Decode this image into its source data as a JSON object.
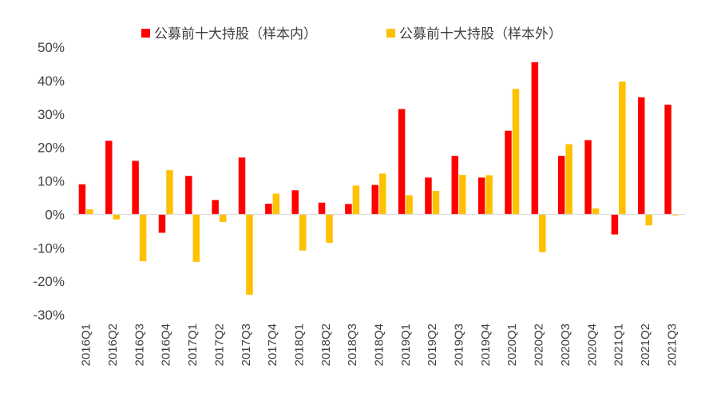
{
  "chart_data": {
    "type": "bar",
    "categories": [
      "2016Q1",
      "2016Q2",
      "2016Q3",
      "2016Q4",
      "2017Q1",
      "2017Q2",
      "2017Q3",
      "2017Q4",
      "2018Q1",
      "2018Q2",
      "2018Q3",
      "2018Q4",
      "2019Q1",
      "2019Q2",
      "2019Q3",
      "2019Q4",
      "2020Q1",
      "2020Q2",
      "2020Q3",
      "2020Q4",
      "2021Q1",
      "2021Q2",
      "2021Q3"
    ],
    "series": [
      {
        "name": "公募前十大持股（样本内）",
        "color": "#ff0000",
        "values": [
          9,
          22,
          16,
          -5.5,
          11.5,
          4.3,
          17,
          3.2,
          7.2,
          3.5,
          3.1,
          8.8,
          31.5,
          11,
          17.5,
          11,
          25,
          45.5,
          17.5,
          22.2,
          -6,
          35,
          32.8
        ]
      },
      {
        "name": "公募前十大持股（样本外）",
        "color": "#ffc000",
        "values": [
          1.5,
          -1.5,
          -14,
          13.2,
          -14.2,
          -2.3,
          -24,
          6.2,
          -10.8,
          -8.5,
          8.6,
          12.2,
          5.7,
          7,
          11.8,
          11.7,
          37.5,
          -11.3,
          21,
          1.8,
          39.7,
          -3.3,
          -0.3
        ]
      }
    ],
    "yticks": [
      "-30%",
      "-20%",
      "-10%",
      "0%",
      "10%",
      "20%",
      "30%",
      "40%",
      "50%"
    ],
    "ylim": [
      -30,
      50
    ],
    "title": "",
    "xlabel": "",
    "ylabel": "",
    "legend_position": "top-center",
    "grid": false
  }
}
